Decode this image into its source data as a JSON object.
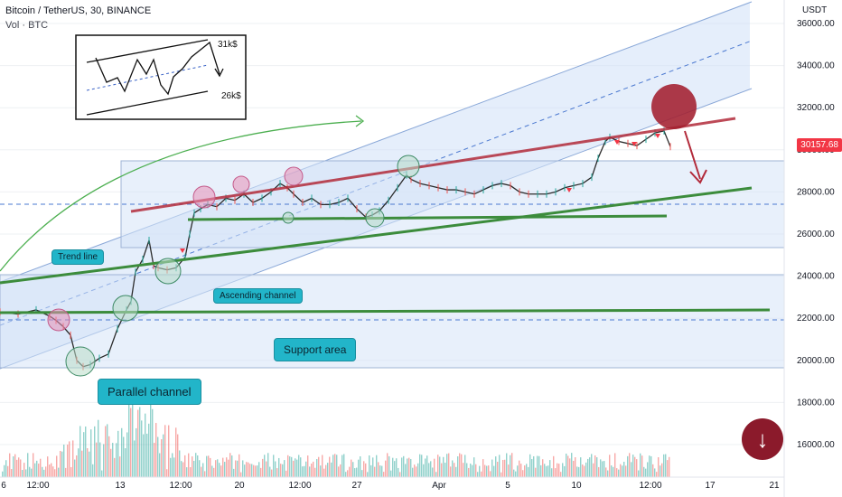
{
  "header": {
    "symbol": "Bitcoin / TetherUS, 30, BINANCE",
    "volume": "Vol · BTC"
  },
  "price_axis": {
    "unit": "USDT",
    "current_price": "30157.68"
  },
  "callouts": {
    "trend_line": "Trend line",
    "ascending_channel": "Ascending channel",
    "support_area": "Support area",
    "parallel_channel": "Parallel channel"
  },
  "inset": {
    "upper_label": "31k$",
    "lower_label": "26k$"
  },
  "colors": {
    "up": "#26a69a",
    "down": "#ef5350",
    "channel_fill": "#cfe0f7",
    "resistance": "#b22a3a",
    "support": "#3c8c3c",
    "circle_red": "#a31f2f"
  },
  "chart_data": {
    "type": "line",
    "title": "Bitcoin / TetherUS, 30, BINANCE",
    "xlabel": "",
    "ylabel": "USDT",
    "ylim": [
      14600,
      37400
    ],
    "x_ticks": [
      "6",
      "12:00",
      "13",
      "12:00",
      "20",
      "12:00",
      "27",
      "Apr",
      "5",
      "10",
      "12:00",
      "17",
      "21"
    ],
    "y_ticks": [
      16000,
      18000,
      20000,
      22000,
      24000,
      26000,
      28000,
      30000,
      32000,
      34000,
      36000
    ],
    "current_price": 30157.68,
    "series": [
      {
        "name": "BTCUSDT",
        "x": [
          0,
          20,
          40,
          55,
          62,
          70,
          78,
          85,
          92,
          100,
          110,
          120,
          130,
          140,
          145,
          150,
          158,
          165,
          170,
          175,
          185,
          195,
          205,
          210,
          215,
          222,
          230,
          240,
          250,
          260,
          270,
          280,
          290,
          300,
          310,
          318,
          325,
          335,
          345,
          355,
          365,
          375,
          385,
          395,
          405,
          412,
          420,
          430,
          440,
          450,
          455,
          465,
          475,
          485,
          495,
          505,
          515,
          525,
          535,
          545,
          555,
          565,
          575,
          585,
          595,
          605,
          615,
          625,
          635,
          645,
          655,
          662,
          670,
          675,
          685,
          695,
          705,
          715,
          725,
          735,
          742
        ],
        "values": [
          22300,
          22200,
          22400,
          22100,
          21900,
          21600,
          21200,
          20000,
          19700,
          19800,
          20100,
          20300,
          21500,
          22400,
          22800,
          24200,
          24800,
          25700,
          24500,
          24400,
          24300,
          24400,
          24900,
          26000,
          27000,
          27200,
          27400,
          27300,
          27700,
          27600,
          27900,
          27500,
          27700,
          28000,
          28400,
          28200,
          27900,
          27500,
          27700,
          27400,
          27400,
          27500,
          27700,
          27200,
          26800,
          26900,
          27100,
          27600,
          28200,
          28800,
          28600,
          28400,
          28300,
          28200,
          28100,
          28100,
          28000,
          27900,
          28100,
          28300,
          28400,
          28300,
          28000,
          27900,
          27900,
          27900,
          28000,
          28200,
          28300,
          28400,
          28700,
          29600,
          30400,
          30600,
          30400,
          30300,
          30200,
          30500,
          30800,
          30900,
          30150
        ]
      }
    ],
    "annotations": [
      "Trend line",
      "Ascending channel",
      "Support area",
      "Parallel channel",
      "31k$",
      "26k$"
    ]
  }
}
